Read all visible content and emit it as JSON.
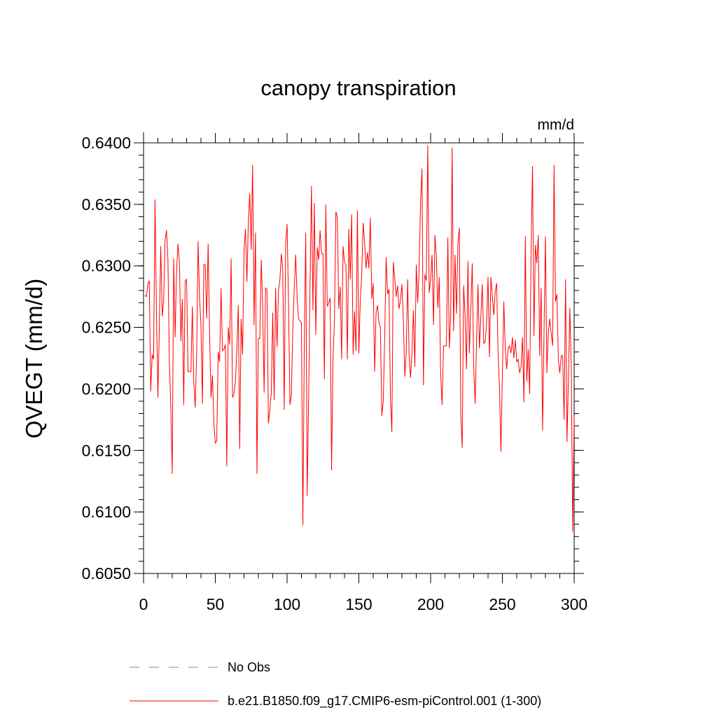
{
  "chart_data": {
    "type": "line",
    "title": "canopy transpiration",
    "units": "mm/d",
    "ylabel": "QVEGT  (mm/d)",
    "xlabel": "",
    "xlim": [
      0,
      300
    ],
    "ylim": [
      0.605,
      0.64
    ],
    "xticks": [
      0,
      50,
      100,
      150,
      200,
      250,
      300
    ],
    "xtick_labels": [
      "0",
      "50",
      "100",
      "150",
      "200",
      "250",
      "300"
    ],
    "yticks": [
      0.605,
      0.61,
      0.615,
      0.62,
      0.625,
      0.63,
      0.635,
      0.64
    ],
    "ytick_labels": [
      "0.6050",
      "0.6100",
      "0.6150",
      "0.6200",
      "0.6250",
      "0.6300",
      "0.6350",
      "0.6400"
    ],
    "grid": false,
    "legend_position": "bottom",
    "series": [
      {
        "name": "No Obs",
        "color": "#8080c0",
        "dash": "dashed",
        "values": []
      },
      {
        "name": "b.e21.B1850.f09_g17.CMIP6-esm-piControl.001 (1-300)",
        "color": "#ff0000",
        "dash": "solid",
        "x_start": 1,
        "values": [
          0.6276,
          0.6275,
          0.6285,
          0.6288,
          0.6198,
          0.6228,
          0.6224,
          0.6354,
          0.6262,
          0.6193,
          0.625,
          0.6316,
          0.6259,
          0.6272,
          0.6321,
          0.6329,
          0.6305,
          0.6221,
          0.6185,
          0.6131,
          0.6306,
          0.6242,
          0.6296,
          0.6318,
          0.6303,
          0.6239,
          0.6273,
          0.6187,
          0.6288,
          0.6289,
          0.6214,
          0.6214,
          0.6214,
          0.6267,
          0.6206,
          0.6185,
          0.6229,
          0.632,
          0.6274,
          0.6252,
          0.6188,
          0.6301,
          0.6301,
          0.6257,
          0.6318,
          0.6246,
          0.6193,
          0.6211,
          0.6172,
          0.6156,
          0.6158,
          0.623,
          0.6222,
          0.6282,
          0.6231,
          0.6232,
          0.6236,
          0.6137,
          0.625,
          0.6236,
          0.6306,
          0.6193,
          0.6196,
          0.6206,
          0.6232,
          0.6268,
          0.6151,
          0.6257,
          0.6228,
          0.6312,
          0.633,
          0.6287,
          0.6335,
          0.6359,
          0.6313,
          0.6382,
          0.6252,
          0.6327,
          0.6131,
          0.6241,
          0.6241,
          0.6305,
          0.6268,
          0.6197,
          0.6282,
          0.6281,
          0.6172,
          0.6183,
          0.6197,
          0.6262,
          0.6191,
          0.6282,
          0.6234,
          0.628,
          0.6289,
          0.631,
          0.6296,
          0.6183,
          0.6318,
          0.6334,
          0.6271,
          0.6187,
          0.6195,
          0.625,
          0.6281,
          0.6309,
          0.6274,
          0.6257,
          0.6255,
          0.6254,
          0.6089,
          0.6237,
          0.6327,
          0.6113,
          0.619,
          0.6286,
          0.6365,
          0.6264,
          0.6351,
          0.6244,
          0.6315,
          0.6305,
          0.6329,
          0.631,
          0.631,
          0.6208,
          0.635,
          0.6267,
          0.627,
          0.6274,
          0.6134,
          0.6226,
          0.6256,
          0.6344,
          0.634,
          0.6265,
          0.6283,
          0.6224,
          0.6316,
          0.6303,
          0.6301,
          0.6224,
          0.633,
          0.6289,
          0.6342,
          0.6228,
          0.6263,
          0.6231,
          0.6345,
          0.6229,
          0.6273,
          0.6292,
          0.6335,
          0.6319,
          0.6298,
          0.6311,
          0.6298,
          0.6339,
          0.6273,
          0.6286,
          0.6214,
          0.6262,
          0.6268,
          0.6254,
          0.625,
          0.6178,
          0.619,
          0.6241,
          0.6307,
          0.6277,
          0.6281,
          0.6193,
          0.6165,
          0.6303,
          0.629,
          0.6275,
          0.6284,
          0.6265,
          0.6272,
          0.6285,
          0.6257,
          0.621,
          0.6229,
          0.6289,
          0.6228,
          0.6209,
          0.6229,
          0.6264,
          0.6218,
          0.6301,
          0.627,
          0.6298,
          0.6352,
          0.6379,
          0.6203,
          0.6293,
          0.6288,
          0.6398,
          0.6278,
          0.6289,
          0.6309,
          0.6252,
          0.6325,
          0.6308,
          0.6266,
          0.6291,
          0.6212,
          0.6187,
          0.6235,
          0.6235,
          0.6235,
          0.6323,
          0.6233,
          0.6261,
          0.6396,
          0.6247,
          0.6309,
          0.6261,
          0.6318,
          0.6331,
          0.6179,
          0.6152,
          0.6284,
          0.626,
          0.6216,
          0.6304,
          0.6229,
          0.6265,
          0.6302,
          0.622,
          0.6188,
          0.6238,
          0.6285,
          0.6233,
          0.6259,
          0.6285,
          0.6237,
          0.6238,
          0.6253,
          0.6291,
          0.6226,
          0.6291,
          0.6276,
          0.626,
          0.6279,
          0.6286,
          0.623,
          0.62,
          0.6149,
          0.6213,
          0.6271,
          0.6232,
          0.6216,
          0.6233,
          0.6235,
          0.6229,
          0.6242,
          0.6225,
          0.624,
          0.6222,
          0.6224,
          0.6213,
          0.6218,
          0.6242,
          0.6189,
          0.6324,
          0.6206,
          0.6232,
          0.6196,
          0.6312,
          0.6381,
          0.6243,
          0.6317,
          0.6302,
          0.6325,
          0.6227,
          0.6282,
          0.6166,
          0.6245,
          0.6324,
          0.6213,
          0.6246,
          0.6257,
          0.6245,
          0.6235,
          0.6382,
          0.6271,
          0.6277,
          0.6223,
          0.6213,
          0.6227,
          0.6227,
          0.6175,
          0.6289,
          0.6157,
          0.6208,
          0.6266,
          0.6216,
          0.6084,
          0.6178
        ]
      }
    ]
  }
}
